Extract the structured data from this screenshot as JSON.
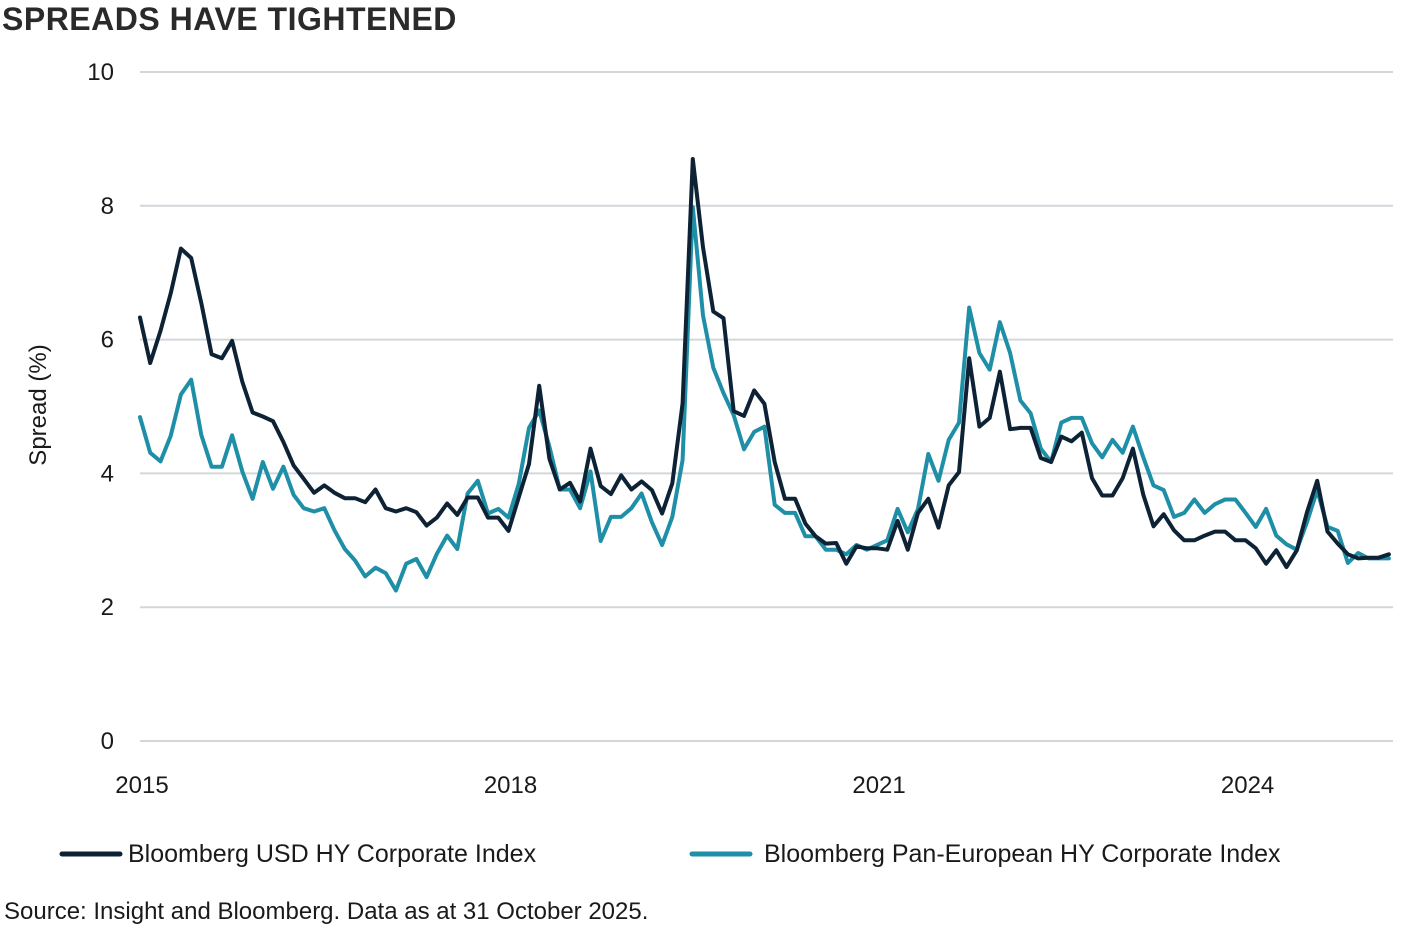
{
  "chart_data": {
    "type": "line",
    "title": "SPREADS HAVE TIGHTENED",
    "xlabel": "",
    "ylabel": "Spread (%)",
    "ylim": [
      0,
      10
    ],
    "yticks": [
      "0",
      "2",
      "4",
      "6",
      "8",
      "10"
    ],
    "xlim": [
      2015.0,
      2025.2
    ],
    "xticks": [
      {
        "value": 2015,
        "label": "2015"
      },
      {
        "value": 2018,
        "label": "2018"
      },
      {
        "value": 2021,
        "label": "2021"
      },
      {
        "value": 2024,
        "label": "2024"
      }
    ],
    "grid": true,
    "legend_position": "bottom",
    "series": [
      {
        "name": "Bloomberg USD HY Corporate Index",
        "color": "#0d2235",
        "points": [
          [
            2015.0,
            6.33
          ],
          [
            2015.083,
            5.65
          ],
          [
            2015.167,
            6.13
          ],
          [
            2015.25,
            6.69
          ],
          [
            2015.333,
            7.36
          ],
          [
            2015.417,
            7.22
          ],
          [
            2015.5,
            6.54
          ],
          [
            2015.583,
            5.78
          ],
          [
            2015.667,
            5.72
          ],
          [
            2015.75,
            5.98
          ],
          [
            2015.833,
            5.37
          ],
          [
            2015.917,
            4.91
          ],
          [
            2016.0,
            4.85
          ],
          [
            2016.083,
            4.78
          ],
          [
            2016.167,
            4.47
          ],
          [
            2016.25,
            4.12
          ],
          [
            2016.333,
            3.92
          ],
          [
            2016.417,
            3.71
          ],
          [
            2016.5,
            3.82
          ],
          [
            2016.583,
            3.71
          ],
          [
            2016.667,
            3.63
          ],
          [
            2016.75,
            3.63
          ],
          [
            2016.833,
            3.57
          ],
          [
            2016.917,
            3.76
          ],
          [
            2017.0,
            3.48
          ],
          [
            2017.083,
            3.43
          ],
          [
            2017.167,
            3.48
          ],
          [
            2017.25,
            3.42
          ],
          [
            2017.333,
            3.22
          ],
          [
            2017.417,
            3.34
          ],
          [
            2017.5,
            3.55
          ],
          [
            2017.583,
            3.38
          ],
          [
            2017.667,
            3.64
          ],
          [
            2017.75,
            3.64
          ],
          [
            2017.833,
            3.34
          ],
          [
            2017.917,
            3.34
          ],
          [
            2018.0,
            3.14
          ],
          [
            2018.083,
            3.64
          ],
          [
            2018.167,
            4.14
          ],
          [
            2018.25,
            5.31
          ],
          [
            2018.333,
            4.22
          ],
          [
            2018.417,
            3.76
          ],
          [
            2018.5,
            3.86
          ],
          [
            2018.583,
            3.58
          ],
          [
            2018.667,
            4.37
          ],
          [
            2018.75,
            3.81
          ],
          [
            2018.833,
            3.69
          ],
          [
            2018.917,
            3.97
          ],
          [
            2019.0,
            3.76
          ],
          [
            2019.083,
            3.88
          ],
          [
            2019.167,
            3.75
          ],
          [
            2019.25,
            3.4
          ],
          [
            2019.333,
            3.85
          ],
          [
            2019.417,
            5.05
          ],
          [
            2019.5,
            8.7
          ],
          [
            2019.583,
            7.38
          ],
          [
            2019.667,
            6.42
          ],
          [
            2019.75,
            6.32
          ],
          [
            2019.833,
            4.93
          ],
          [
            2019.917,
            4.86
          ],
          [
            2020.0,
            5.24
          ],
          [
            2020.083,
            5.04
          ],
          [
            2020.167,
            4.17
          ],
          [
            2020.25,
            3.62
          ],
          [
            2020.333,
            3.62
          ],
          [
            2020.417,
            3.25
          ],
          [
            2020.5,
            3.06
          ],
          [
            2020.583,
            2.95
          ],
          [
            2020.667,
            2.96
          ],
          [
            2020.75,
            2.65
          ],
          [
            2020.833,
            2.91
          ],
          [
            2020.917,
            2.88
          ],
          [
            2021.0,
            2.88
          ],
          [
            2021.083,
            2.86
          ],
          [
            2021.167,
            3.29
          ],
          [
            2021.25,
            2.86
          ],
          [
            2021.333,
            3.41
          ],
          [
            2021.417,
            3.62
          ],
          [
            2021.5,
            3.19
          ],
          [
            2021.583,
            3.82
          ],
          [
            2021.667,
            4.02
          ],
          [
            2021.75,
            5.72
          ],
          [
            2021.833,
            4.7
          ],
          [
            2021.917,
            4.83
          ],
          [
            2022.0,
            5.52
          ],
          [
            2022.083,
            4.66
          ],
          [
            2022.167,
            4.68
          ],
          [
            2022.25,
            4.68
          ],
          [
            2022.333,
            4.23
          ],
          [
            2022.417,
            4.17
          ],
          [
            2022.5,
            4.55
          ],
          [
            2022.583,
            4.48
          ],
          [
            2022.667,
            4.61
          ],
          [
            2022.75,
            3.93
          ],
          [
            2022.833,
            3.67
          ],
          [
            2022.917,
            3.67
          ],
          [
            2023.0,
            3.93
          ],
          [
            2023.083,
            4.37
          ],
          [
            2023.167,
            3.68
          ],
          [
            2023.25,
            3.21
          ],
          [
            2023.333,
            3.39
          ],
          [
            2023.417,
            3.15
          ],
          [
            2023.5,
            3.0
          ],
          [
            2023.583,
            3.0
          ],
          [
            2023.667,
            3.07
          ],
          [
            2023.75,
            3.13
          ],
          [
            2023.833,
            3.13
          ],
          [
            2023.917,
            3.0
          ],
          [
            2024.0,
            3.0
          ],
          [
            2024.083,
            2.88
          ],
          [
            2024.167,
            2.65
          ],
          [
            2024.25,
            2.85
          ],
          [
            2024.333,
            2.6
          ],
          [
            2024.417,
            2.85
          ],
          [
            2024.5,
            3.42
          ],
          [
            2024.583,
            3.89
          ],
          [
            2024.667,
            3.13
          ],
          [
            2024.75,
            2.95
          ],
          [
            2024.833,
            2.79
          ],
          [
            2024.917,
            2.73
          ],
          [
            2025.0,
            2.74
          ],
          [
            2025.083,
            2.74
          ],
          [
            2025.167,
            2.79
          ]
        ]
      },
      {
        "name": "Bloomberg Pan-European HY Corporate Index",
        "color": "#1e8fa6",
        "points": [
          [
            2015.0,
            4.84
          ],
          [
            2015.083,
            4.31
          ],
          [
            2015.167,
            4.18
          ],
          [
            2015.25,
            4.56
          ],
          [
            2015.333,
            5.18
          ],
          [
            2015.417,
            5.4
          ],
          [
            2015.5,
            4.57
          ],
          [
            2015.583,
            4.1
          ],
          [
            2015.667,
            4.1
          ],
          [
            2015.75,
            4.57
          ],
          [
            2015.833,
            4.03
          ],
          [
            2015.917,
            3.62
          ],
          [
            2016.0,
            4.17
          ],
          [
            2016.083,
            3.77
          ],
          [
            2016.167,
            4.1
          ],
          [
            2016.25,
            3.68
          ],
          [
            2016.333,
            3.48
          ],
          [
            2016.417,
            3.43
          ],
          [
            2016.5,
            3.48
          ],
          [
            2016.583,
            3.15
          ],
          [
            2016.667,
            2.87
          ],
          [
            2016.75,
            2.7
          ],
          [
            2016.833,
            2.46
          ],
          [
            2016.917,
            2.59
          ],
          [
            2017.0,
            2.51
          ],
          [
            2017.083,
            2.25
          ],
          [
            2017.167,
            2.65
          ],
          [
            2017.25,
            2.72
          ],
          [
            2017.333,
            2.45
          ],
          [
            2017.417,
            2.8
          ],
          [
            2017.5,
            3.07
          ],
          [
            2017.583,
            2.87
          ],
          [
            2017.667,
            3.7
          ],
          [
            2017.75,
            3.89
          ],
          [
            2017.833,
            3.4
          ],
          [
            2017.917,
            3.47
          ],
          [
            2018.0,
            3.34
          ],
          [
            2018.083,
            3.84
          ],
          [
            2018.167,
            4.68
          ],
          [
            2018.25,
            4.94
          ],
          [
            2018.333,
            4.4
          ],
          [
            2018.417,
            3.76
          ],
          [
            2018.5,
            3.76
          ],
          [
            2018.583,
            3.48
          ],
          [
            2018.667,
            4.03
          ],
          [
            2018.75,
            2.99
          ],
          [
            2018.833,
            3.35
          ],
          [
            2018.917,
            3.35
          ],
          [
            2019.0,
            3.48
          ],
          [
            2019.083,
            3.7
          ],
          [
            2019.167,
            3.27
          ],
          [
            2019.25,
            2.93
          ],
          [
            2019.333,
            3.35
          ],
          [
            2019.417,
            4.2
          ],
          [
            2019.5,
            7.98
          ],
          [
            2019.583,
            6.36
          ],
          [
            2019.667,
            5.58
          ],
          [
            2019.75,
            5.2
          ],
          [
            2019.833,
            4.87
          ],
          [
            2019.917,
            4.36
          ],
          [
            2020.0,
            4.62
          ],
          [
            2020.083,
            4.7
          ],
          [
            2020.167,
            3.53
          ],
          [
            2020.25,
            3.41
          ],
          [
            2020.333,
            3.41
          ],
          [
            2020.417,
            3.06
          ],
          [
            2020.5,
            3.06
          ],
          [
            2020.583,
            2.86
          ],
          [
            2020.667,
            2.86
          ],
          [
            2020.75,
            2.79
          ],
          [
            2020.833,
            2.93
          ],
          [
            2020.917,
            2.86
          ],
          [
            2021.0,
            2.93
          ],
          [
            2021.083,
            3.0
          ],
          [
            2021.167,
            3.47
          ],
          [
            2021.25,
            3.12
          ],
          [
            2021.333,
            3.47
          ],
          [
            2021.417,
            4.29
          ],
          [
            2021.5,
            3.89
          ],
          [
            2021.583,
            4.5
          ],
          [
            2021.667,
            4.76
          ],
          [
            2021.75,
            6.48
          ],
          [
            2021.833,
            5.8
          ],
          [
            2021.917,
            5.55
          ],
          [
            2022.0,
            6.26
          ],
          [
            2022.083,
            5.8
          ],
          [
            2022.167,
            5.09
          ],
          [
            2022.25,
            4.9
          ],
          [
            2022.333,
            4.37
          ],
          [
            2022.417,
            4.17
          ],
          [
            2022.5,
            4.76
          ],
          [
            2022.583,
            4.83
          ],
          [
            2022.667,
            4.83
          ],
          [
            2022.75,
            4.45
          ],
          [
            2022.833,
            4.24
          ],
          [
            2022.917,
            4.5
          ],
          [
            2023.0,
            4.31
          ],
          [
            2023.083,
            4.7
          ],
          [
            2023.167,
            4.24
          ],
          [
            2023.25,
            3.82
          ],
          [
            2023.333,
            3.75
          ],
          [
            2023.417,
            3.35
          ],
          [
            2023.5,
            3.41
          ],
          [
            2023.583,
            3.61
          ],
          [
            2023.667,
            3.41
          ],
          [
            2023.75,
            3.54
          ],
          [
            2023.833,
            3.61
          ],
          [
            2023.917,
            3.61
          ],
          [
            2024.0,
            3.41
          ],
          [
            2024.083,
            3.2
          ],
          [
            2024.167,
            3.47
          ],
          [
            2024.25,
            3.07
          ],
          [
            2024.333,
            2.94
          ],
          [
            2024.417,
            2.86
          ],
          [
            2024.5,
            3.27
          ],
          [
            2024.583,
            3.75
          ],
          [
            2024.667,
            3.2
          ],
          [
            2024.75,
            3.14
          ],
          [
            2024.833,
            2.66
          ],
          [
            2024.917,
            2.81
          ],
          [
            2025.0,
            2.73
          ],
          [
            2025.083,
            2.73
          ],
          [
            2025.167,
            2.73
          ]
        ]
      }
    ]
  },
  "source": "Source: Insight and Bloomberg. Data as at 31 October 2025."
}
